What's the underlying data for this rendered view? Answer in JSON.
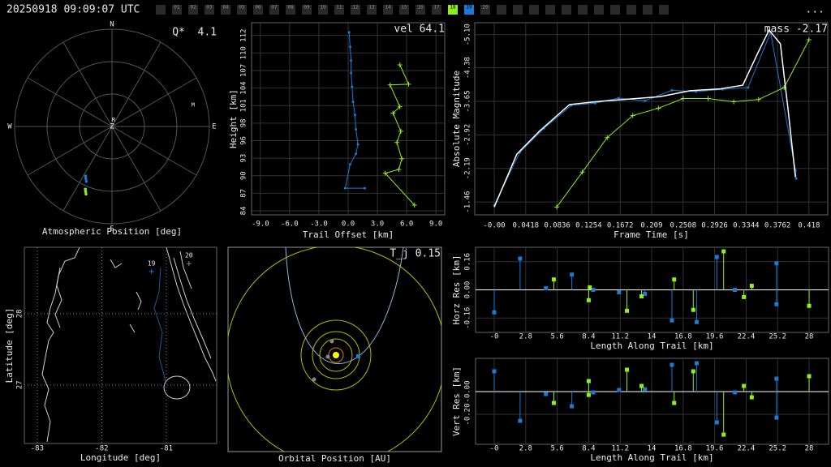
{
  "header": {
    "timestamp": "20250918 09:09:07 UTC",
    "menu": "...",
    "stations": [
      {
        "label": "01"
      },
      {
        "label": "02"
      },
      {
        "label": "03"
      },
      {
        "label": "04"
      },
      {
        "label": "05"
      },
      {
        "label": "06"
      },
      {
        "label": "07"
      },
      {
        "label": "08"
      },
      {
        "label": "09"
      },
      {
        "label": "10"
      },
      {
        "label": "11"
      },
      {
        "label": "12"
      },
      {
        "label": "13"
      },
      {
        "label": "14"
      },
      {
        "label": "15"
      },
      {
        "label": "16"
      },
      {
        "label": "17"
      },
      {
        "label": "18",
        "color": "#8ef01a"
      },
      {
        "label": "19",
        "color": "#1a7ad4"
      },
      {
        "label": "20"
      }
    ]
  },
  "chart_data": [
    {
      "type": "polar",
      "annotation": "Q*  4.1",
      "title": "Atmospheric Position [deg]",
      "directions": [
        "N",
        "E",
        "S",
        "W"
      ],
      "zenith_label": "Z",
      "markers": [
        {
          "label": "R",
          "azimuth": 14,
          "elevation": 84
        },
        {
          "label": "M",
          "azimuth": 75,
          "elevation": 12.5
        }
      ],
      "series": [
        {
          "color": "#1a7ad4",
          "azimuth": [
            205,
            206.6,
            208
          ],
          "elevation": [
            34,
            36,
            38
          ]
        },
        {
          "color": "#8ef01a",
          "azimuth": [
            201,
            202,
            203
          ],
          "elevation": [
            23,
            25,
            27
          ]
        }
      ]
    },
    {
      "type": "line",
      "annotation": "vel 64.1",
      "xlabel": "Trail Offset [km]",
      "ylabel": "Height [km]",
      "grid": true,
      "xlim": [
        -9.9,
        9.9
      ],
      "xticks": [
        {
          "value": -9,
          "label": "-9.0"
        },
        {
          "value": -6,
          "label": "-6.0"
        },
        {
          "value": -3,
          "label": "-3.0"
        },
        {
          "value": 0,
          "label": "0.0"
        },
        {
          "value": 3,
          "label": "3.0"
        },
        {
          "value": 6,
          "label": "6.0"
        },
        {
          "value": 9,
          "label": "9.0"
        }
      ],
      "ylim": [
        83.75,
        114.43
      ],
      "yticks": [
        {
          "value": 84.4,
          "label": "84"
        },
        {
          "value": 87.2,
          "label": "87"
        },
        {
          "value": 90,
          "label": "90"
        },
        {
          "value": 92.8,
          "label": "93"
        },
        {
          "value": 95.6,
          "label": "96"
        },
        {
          "value": 98.4,
          "label": "98"
        },
        {
          "value": 101.2,
          "label": "101"
        },
        {
          "value": 104,
          "label": "104"
        },
        {
          "value": 106.8,
          "label": "107"
        },
        {
          "value": 109.6,
          "label": "110"
        },
        {
          "value": 112.4,
          "label": "112"
        }
      ],
      "series": [
        {
          "color": "#1a7ad4",
          "marker": "dot",
          "x": [
            0.1,
            0.2,
            0.3,
            0.3,
            0.4,
            0.5,
            0.7,
            0.8,
            1.0,
            0.8,
            0.2,
            -0.3,
            1.7
          ],
          "values": [
            112.9,
            110.6,
            108.4,
            106.4,
            104.2,
            101.8,
            99.7,
            97.4,
            95.0,
            93.5,
            91.8,
            88.0,
            88.0
          ]
        },
        {
          "color": "#8ef01a",
          "marker": "plus",
          "x": [
            5.3,
            6.2,
            4.3,
            5.3,
            4.6,
            5.4,
            5.0,
            5.5,
            5.2,
            3.8,
            6.8
          ],
          "values": [
            107.7,
            104.6,
            104.5,
            101.0,
            100.0,
            97.1,
            95.3,
            92.7,
            91.0,
            90.4,
            85.3
          ]
        }
      ]
    },
    {
      "type": "line",
      "annotation": "mass -2.17",
      "xlabel": "Frame Time [s]",
      "ylabel": "Absolute Magnitude",
      "grid": true,
      "xlim": [
        -0.0259,
        0.4429
      ],
      "xticks": [
        {
          "value": 0,
          "label": "-0.00"
        },
        0.0418,
        0.0836,
        0.1254,
        0.1672,
        0.209,
        0.2508,
        0.2926,
        0.3344,
        0.3762,
        0.418
      ],
      "ylim": [
        -1.18,
        -5.36
      ],
      "yticks": [
        -1.46,
        -2.19,
        -2.92,
        -3.65,
        -4.38,
        {
          "value": -5.1,
          "label": "-5.10"
        }
      ],
      "series": [
        {
          "color": "#1a7ad4",
          "marker": "dot",
          "x": [
            0,
            0.034,
            0.066,
            0.102,
            0.134,
            0.165,
            0.2,
            0.236,
            0.268,
            0.303,
            0.337,
            0.367,
            0.4,
            0.401
          ],
          "values": [
            -1.39,
            -2.54,
            -3.06,
            -3.56,
            -3.61,
            -3.72,
            -3.66,
            -3.89,
            -3.86,
            -3.91,
            -3.95,
            -5.15,
            -2.15,
            -1.97
          ]
        },
        {
          "color": "#8ef01a",
          "marker": "plus",
          "x": [
            0.083,
            0.117,
            0.15,
            0.184,
            0.218,
            0.251,
            0.284,
            0.318,
            0.351,
            0.385,
            0.418
          ],
          "values": [
            -1.35,
            -2.11,
            -2.86,
            -3.34,
            -3.5,
            -3.71,
            -3.71,
            -3.64,
            -3.69,
            -3.95,
            -4.99
          ]
        },
        {
          "color": "#ffffff",
          "marker": "none",
          "x": [
            0,
            0.03,
            0.06,
            0.1,
            0.14,
            0.18,
            0.22,
            0.26,
            0.3,
            0.33,
            0.35,
            0.365,
            0.38,
            0.39,
            0.4
          ],
          "values": [
            -1.35,
            -2.5,
            -3.0,
            -3.58,
            -3.65,
            -3.7,
            -3.75,
            -3.88,
            -3.92,
            -4.0,
            -4.7,
            -5.2,
            -4.9,
            -3.5,
            -2.0
          ]
        }
      ]
    },
    {
      "type": "map",
      "xlabel": "Longitude [deg]",
      "ylabel": "Latitude [deg]",
      "grid": true,
      "xlim": [
        -83.2,
        -80.22
      ],
      "xticks": [
        -83,
        -82,
        -81
      ],
      "ylim": [
        26.18,
        28.93
      ],
      "yticks": [
        27,
        28
      ],
      "stations": [
        {
          "label": "19",
          "lon": -81.23,
          "lat": 28.59,
          "color": "#1a7ad4"
        },
        {
          "label": "20",
          "lon": -80.65,
          "lat": 28.7,
          "color": "#888888"
        }
      ]
    },
    {
      "type": "orbit",
      "annotation": "T_j 0.15",
      "title": "Orbital Position [AU]"
    },
    {
      "type": "stem",
      "xlabel": "Length Along Trail [km]",
      "ylabel": "Horz Res [km]",
      "grid": true,
      "xlim": [
        -1.66,
        29.73
      ],
      "xticks": [
        {
          "value": 0,
          "label": "-0"
        },
        2.8,
        5.6,
        8.4,
        11.2,
        14,
        16.8,
        19.6,
        22.4,
        25.2,
        28
      ],
      "ylim": [
        -0.242,
        0.242
      ],
      "yticks": [
        0.16,
        {
          "value": 0,
          "label": "0.00"
        },
        -0.16
      ],
      "series": [
        {
          "color": "#1a7ad4",
          "x": [
            0,
            2.3,
            4.6,
            6.9,
            8.8,
            11.1,
            13.4,
            15.8,
            18.0,
            19.8,
            21.4,
            25.1,
            25.1
          ],
          "values": [
            -0.128,
            0.178,
            0.009,
            0.087,
            0,
            -0.014,
            -0.023,
            -0.174,
            -0.183,
            0.187,
            0,
            0.151,
            -0.082
          ]
        },
        {
          "color": "#8ef01a",
          "x": [
            5.3,
            8.4,
            8.5,
            11.8,
            13.1,
            16.0,
            17.7,
            20.4,
            22.2,
            22.9,
            28.0
          ],
          "values": [
            0.059,
            -0.059,
            0.014,
            -0.119,
            -0.037,
            0.059,
            -0.114,
            0.219,
            -0.041,
            0.023,
            -0.091
          ]
        }
      ]
    },
    {
      "type": "stem",
      "xlabel": "Length Along Trail [km]",
      "ylabel": "Vert Res [km]",
      "grid": true,
      "xlim": [
        -1.66,
        29.73
      ],
      "xticks": [
        {
          "value": 0,
          "label": "-0"
        },
        2.8,
        5.6,
        8.4,
        11.2,
        14,
        16.8,
        19.6,
        22.4,
        25.2,
        28
      ],
      "ylim": [
        -0.464,
        0.293
      ],
      "yticks": [
        {
          "value": 0,
          "label": "-0.00"
        },
        {
          "value": -0.2,
          "label": "-0.20"
        }
      ],
      "series": [
        {
          "color": "#1a7ad4",
          "x": [
            0,
            2.3,
            4.6,
            6.9,
            8.8,
            11.1,
            13.4,
            15.8,
            18.0,
            19.8,
            21.4,
            25.1,
            25.1
          ],
          "values": [
            0.179,
            -0.257,
            -0.021,
            -0.129,
            -0.007,
            0.014,
            0.021,
            0.236,
            0.25,
            -0.271,
            -0.007,
            0.114,
            -0.229
          ]
        },
        {
          "color": "#8ef01a",
          "x": [
            5.3,
            8.4,
            8.4,
            11.8,
            13.1,
            16.0,
            17.7,
            20.4,
            22.2,
            22.9,
            28.0
          ],
          "values": [
            -0.1,
            0.093,
            -0.029,
            0.193,
            0.05,
            -0.1,
            0.179,
            -0.379,
            0.05,
            -0.05,
            0.136
          ]
        }
      ]
    }
  ]
}
